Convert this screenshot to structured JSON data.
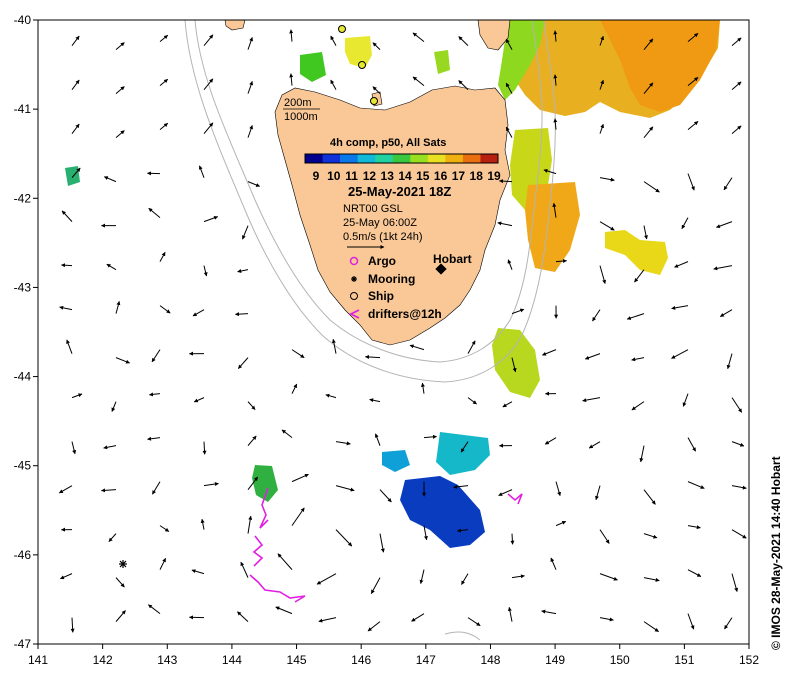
{
  "map": {
    "composite_label": "4h comp, p50, All Sats",
    "colorbar_ticks": [
      "9",
      "10",
      "11",
      "12",
      "13",
      "14",
      "15",
      "16",
      "17",
      "18",
      "19"
    ],
    "colorbar_colors": [
      "#00008c",
      "#1030d8",
      "#0a78e8",
      "#12b8d8",
      "#22d0a0",
      "#38c840",
      "#98e020",
      "#e8e020",
      "#f0b010",
      "#e87010",
      "#b82010"
    ],
    "date": "25-May-2021 18Z",
    "current_source": "NRT00 GSL",
    "current_time": "25-May 06:00Z",
    "scale_label": "0.5m/s (1kt 24h)",
    "city": "Hobart",
    "isobath_200": "200m",
    "isobath_1000": "1000m",
    "credit": "© IMOS 28-May-2021 14:40 Hobart",
    "land_color": "#f9c896",
    "drifter_color": "#e020e0"
  },
  "legend": {
    "argo": "Argo",
    "mooring": "Mooring",
    "ship": "Ship",
    "drifters": "drifters@12h"
  },
  "axes": {
    "x_ticks": [
      "141",
      "142",
      "143",
      "144",
      "145",
      "146",
      "147",
      "148",
      "149",
      "150",
      "151",
      "152"
    ],
    "y_ticks": [
      "-40",
      "-41",
      "-42",
      "-43",
      "-44",
      "-45",
      "-46",
      "-47"
    ],
    "lon_range": [
      141,
      152
    ],
    "lat_range": [
      -47,
      -40
    ]
  }
}
